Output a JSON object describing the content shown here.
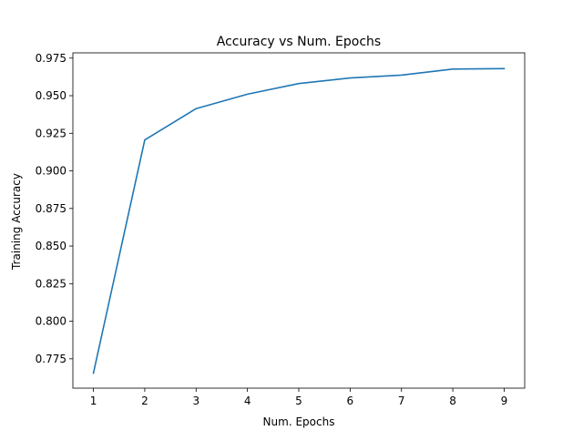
{
  "chart_data": {
    "type": "line",
    "title": "Accuracy vs Num. Epochs",
    "xlabel": "Num. Epochs",
    "ylabel": "Training Accuracy",
    "x": [
      1,
      2,
      3,
      4,
      5,
      6,
      7,
      8,
      9
    ],
    "series": [
      {
        "values": [
          0.7655,
          0.9206,
          0.9414,
          0.951,
          0.9581,
          0.9618,
          0.9637,
          0.9677,
          0.968
        ],
        "color": "#1f77b4"
      }
    ],
    "xlim": [
      0.6,
      9.4
    ],
    "ylim": [
      0.7555,
      0.9785
    ],
    "xticks": [
      1,
      2,
      3,
      4,
      5,
      6,
      7,
      8,
      9
    ],
    "xtick_labels": [
      "1",
      "2",
      "3",
      "4",
      "5",
      "6",
      "7",
      "8",
      "9"
    ],
    "yticks": [
      0.775,
      0.8,
      0.825,
      0.85,
      0.875,
      0.9,
      0.925,
      0.95,
      0.975
    ],
    "ytick_labels": [
      "0.775",
      "0.800",
      "0.825",
      "0.850",
      "0.875",
      "0.900",
      "0.925",
      "0.950",
      "0.975"
    ],
    "grid": false,
    "legend": "none"
  }
}
